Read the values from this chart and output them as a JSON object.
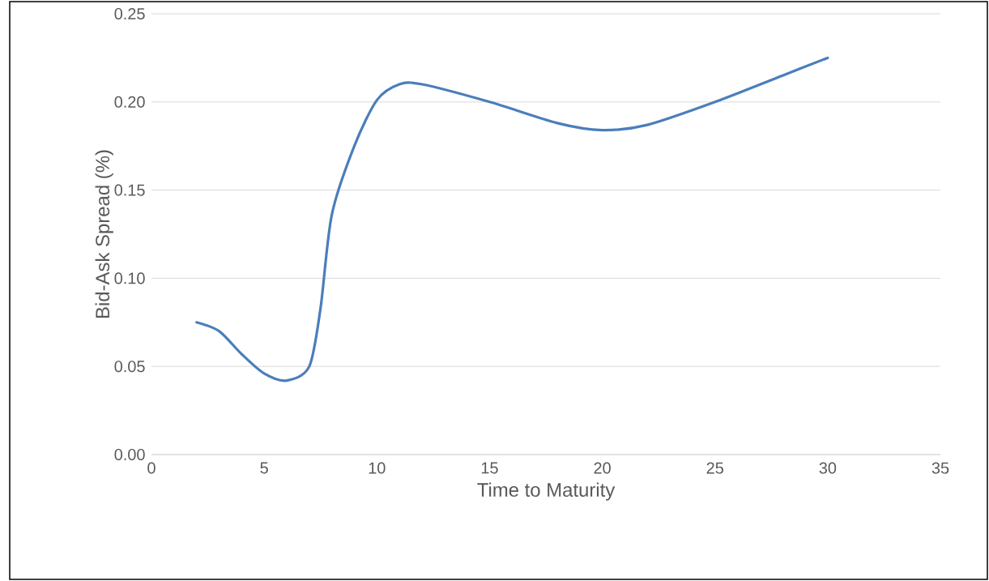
{
  "chart_data": {
    "type": "line",
    "xlabel": "Time to Maturity",
    "ylabel": "Bid-Ask Spread (%)",
    "x": [
      2,
      3,
      4,
      5,
      6,
      7,
      7.5,
      8,
      9,
      10,
      11,
      12,
      15,
      18,
      20,
      22,
      25,
      28,
      30
    ],
    "series": [
      {
        "color": "#4a7ebb",
        "values": [
          0.075,
          0.07,
          0.057,
          0.046,
          0.042,
          0.05,
          0.083,
          0.136,
          0.175,
          0.201,
          0.21,
          0.21,
          0.2,
          0.188,
          0.184,
          0.187,
          0.2,
          0.215,
          0.225
        ]
      }
    ],
    "xlim": [
      0,
      35
    ],
    "xticks": [
      0,
      5,
      10,
      15,
      20,
      25,
      30,
      35
    ],
    "ylim": [
      0,
      0.25
    ],
    "yticks": [
      {
        "value": 0,
        "label": "0.00"
      },
      {
        "value": 0.05,
        "label": "0.05"
      },
      {
        "value": 0.1,
        "label": "0.10"
      },
      {
        "value": 0.15,
        "label": "0.15"
      },
      {
        "value": 0.2,
        "label": "0.20"
      },
      {
        "value": 0.25,
        "label": "0.25"
      }
    ],
    "grid": "y",
    "marker": "none",
    "line_style": "solid"
  }
}
